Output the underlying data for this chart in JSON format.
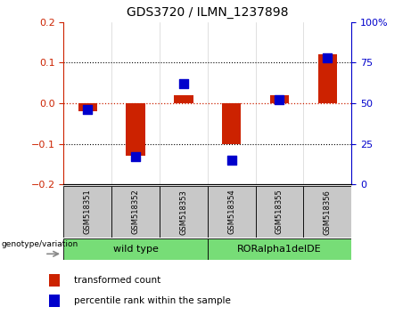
{
  "title": "GDS3720 / ILMN_1237898",
  "samples": [
    "GSM518351",
    "GSM518352",
    "GSM518353",
    "GSM518354",
    "GSM518355",
    "GSM518356"
  ],
  "transformed_count": [
    -0.02,
    -0.13,
    0.02,
    -0.1,
    0.02,
    0.12
  ],
  "percentile_rank": [
    46,
    17,
    62,
    15,
    52,
    78
  ],
  "ylim_left": [
    -0.2,
    0.2
  ],
  "ylim_right": [
    0,
    100
  ],
  "yticks_left": [
    -0.2,
    -0.1,
    0,
    0.1,
    0.2
  ],
  "yticks_right": [
    0,
    25,
    50,
    75,
    100
  ],
  "ytick_labels_right": [
    "0",
    "25",
    "50",
    "75",
    "100%"
  ],
  "group_bg_color": "#77DD77",
  "sample_bg_color": "#C8C8C8",
  "bar_color": "#CC2200",
  "dot_color": "#0000CC",
  "zero_line_color": "#CC2200",
  "bar_width": 0.4,
  "dot_size": 55,
  "legend_bar_label": "transformed count",
  "legend_dot_label": "percentile rank within the sample",
  "genotype_label": "genotype/variation"
}
